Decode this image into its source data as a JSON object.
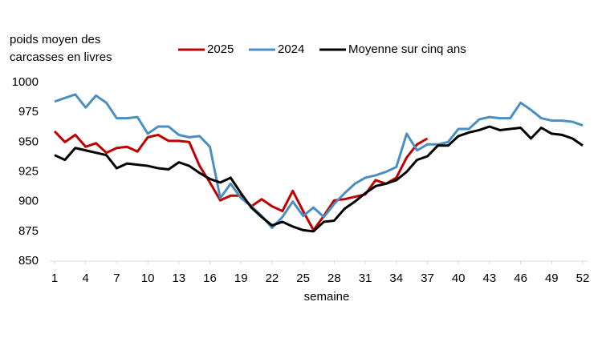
{
  "chart_data": {
    "type": "line",
    "y_label": [
      "poids moyen des",
      "carcasses en livres"
    ],
    "x_label": "semaine",
    "x": [
      1,
      2,
      3,
      4,
      5,
      6,
      7,
      8,
      9,
      10,
      11,
      12,
      13,
      14,
      15,
      16,
      17,
      18,
      19,
      20,
      21,
      22,
      23,
      24,
      25,
      26,
      27,
      28,
      29,
      30,
      31,
      32,
      33,
      34,
      35,
      36,
      37,
      38,
      39,
      40,
      41,
      42,
      43,
      44,
      45,
      46,
      47,
      48,
      49,
      50,
      51,
      52
    ],
    "series": [
      {
        "name": "2025",
        "color": "#c00000",
        "values": [
          959,
          950,
          956,
          946,
          949,
          941,
          945,
          946,
          942,
          954,
          956,
          951,
          951,
          950,
          930,
          916,
          901,
          905,
          905,
          896,
          902,
          896,
          892,
          909,
          892,
          876,
          888,
          901,
          902,
          904,
          906,
          918,
          915,
          920,
          937,
          948,
          953,
          null,
          null,
          null,
          null,
          null,
          null,
          null,
          null,
          null,
          null,
          null,
          null,
          null,
          null,
          null
        ]
      },
      {
        "name": "2024",
        "color": "#4a8fc0",
        "values": [
          984,
          987,
          990,
          979,
          989,
          983,
          970,
          970,
          971,
          957,
          963,
          963,
          956,
          954,
          955,
          946,
          903,
          915,
          903,
          896,
          888,
          878,
          887,
          900,
          888,
          895,
          887,
          898,
          907,
          915,
          920,
          922,
          925,
          929,
          957,
          943,
          948,
          948,
          950,
          961,
          961,
          969,
          971,
          970,
          970,
          983,
          977,
          970,
          968,
          968,
          967,
          964
        ]
      },
      {
        "name": "Moyenne sur cinq ans",
        "color": "#000000",
        "values": [
          939,
          935,
          945,
          943,
          941,
          939,
          928,
          932,
          931,
          930,
          928,
          927,
          933,
          930,
          924,
          919,
          916,
          920,
          907,
          895,
          887,
          880,
          883,
          879,
          876,
          875,
          883,
          884,
          894,
          900,
          907,
          913,
          915,
          918,
          925,
          935,
          938,
          947,
          947,
          955,
          958,
          960,
          963,
          960,
          961,
          962,
          953,
          962,
          957,
          956,
          953,
          947
        ]
      }
    ],
    "xlim": [
      1,
      52
    ],
    "xticks": [
      1,
      4,
      7,
      10,
      13,
      16,
      19,
      22,
      25,
      28,
      31,
      34,
      37,
      40,
      43,
      46,
      49,
      52
    ],
    "ylim": [
      850,
      1000
    ],
    "yticks": [
      850,
      875,
      900,
      925,
      950,
      975,
      1000
    ],
    "grid": false,
    "legend": "top"
  }
}
